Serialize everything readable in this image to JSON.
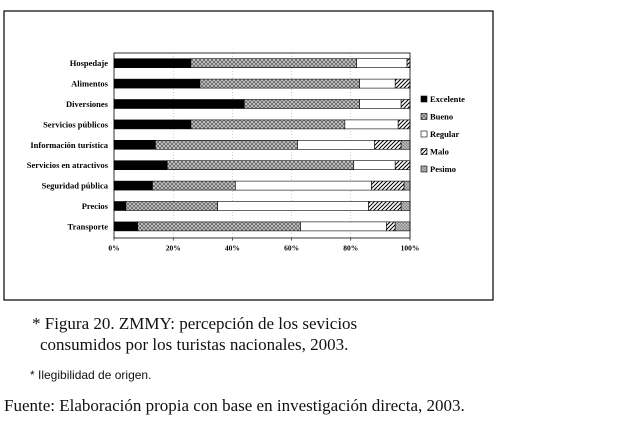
{
  "chart_data": {
    "type": "bar",
    "stacked": true,
    "orientation": "horizontal",
    "categories": [
      "Hospedaje",
      "Alimentos",
      "Diversiones",
      "Servicios públicos",
      "Información turística",
      "Servicios en atractivos",
      "Seguridad pública",
      "Precios",
      "Transporte"
    ],
    "series": [
      {
        "name": "Excelente",
        "values": [
          26,
          29,
          44,
          26,
          14,
          18,
          13,
          4,
          8
        ]
      },
      {
        "name": "Bueno",
        "values": [
          56,
          54,
          39,
          52,
          48,
          63,
          28,
          31,
          55
        ]
      },
      {
        "name": "Regular",
        "values": [
          17,
          12,
          14,
          18,
          26,
          14,
          46,
          51,
          29
        ]
      },
      {
        "name": "Malo",
        "values": [
          1,
          5,
          3,
          4,
          9,
          5,
          11,
          11,
          3
        ]
      },
      {
        "name": "Pesimo",
        "values": [
          0,
          0,
          0,
          0,
          3,
          0,
          2,
          3,
          5
        ]
      }
    ],
    "xticks": [
      "0%",
      "20%",
      "40%",
      "60%",
      "80%",
      "100%"
    ],
    "xlim": [
      0,
      100
    ],
    "legend_position": "right",
    "colors": {
      "Excelente": "#000000",
      "Bueno": "#aaaaaa",
      "Regular": "#ffffff",
      "Malo": "#ffffff",
      "Pesimo": "#bbbbbb"
    }
  },
  "captions": {
    "title_line1": "* Figura 20. ZMMY: percepción de los sevicios",
    "title_line2": "consumidos por los turistas nacionales, 2003.",
    "note": "* Ilegibilidad de origen.",
    "source": "Fuente: Elaboración propia con base en investigación directa, 2003."
  }
}
